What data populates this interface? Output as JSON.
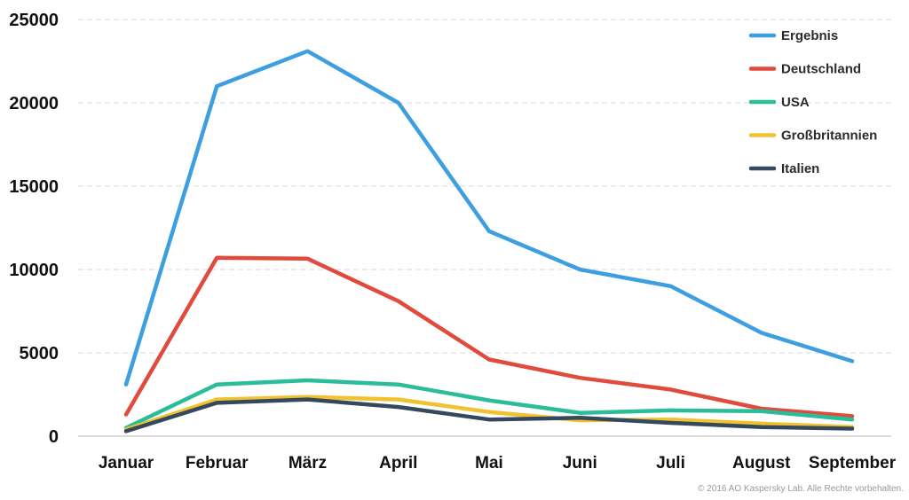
{
  "chart_data": {
    "type": "line",
    "categories": [
      "Januar",
      "Februar",
      "März",
      "April",
      "Mai",
      "Juni",
      "Juli",
      "August",
      "September"
    ],
    "ylim": [
      0,
      25000
    ],
    "yticks": [
      0,
      5000,
      10000,
      15000,
      20000,
      25000
    ],
    "grid": true,
    "legend_position": "top-right",
    "series": [
      {
        "name": "Ergebnis",
        "color": "#3d9ee0",
        "values": [
          3100,
          21000,
          23100,
          20000,
          12300,
          10000,
          9000,
          6200,
          4500
        ]
      },
      {
        "name": "Deutschland",
        "color": "#e14b3d",
        "values": [
          1300,
          10700,
          10650,
          8100,
          4600,
          3500,
          2800,
          1650,
          1200
        ]
      },
      {
        "name": "USA",
        "color": "#2bbd9a",
        "values": [
          500,
          3100,
          3350,
          3100,
          2150,
          1400,
          1550,
          1500,
          1000
        ]
      },
      {
        "name": "Großbritannien",
        "color": "#f0c230",
        "values": [
          400,
          2200,
          2350,
          2200,
          1450,
          950,
          1000,
          750,
          550
        ]
      },
      {
        "name": "Italien",
        "color": "#34495e",
        "values": [
          300,
          2000,
          2200,
          1750,
          1000,
          1100,
          800,
          550,
          450
        ]
      }
    ]
  },
  "footer": {
    "copyright": "© 2016 AO Kaspersky Lab. Alle Rechte vorbehalten."
  }
}
